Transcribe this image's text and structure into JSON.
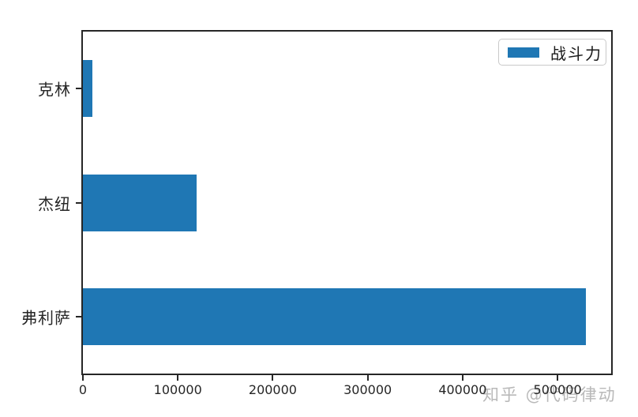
{
  "chart_data": {
    "type": "bar",
    "orientation": "horizontal",
    "title": "",
    "xlabel": "",
    "ylabel": "",
    "categories": [
      "克林",
      "杰纽",
      "弗利萨"
    ],
    "series": [
      {
        "name": "战斗力",
        "values": [
          10000,
          120000,
          530000
        ]
      }
    ],
    "xlim": [
      0,
      556500
    ],
    "xticks": [
      0,
      100000,
      200000,
      300000,
      400000,
      500000
    ],
    "xtick_labels": [
      "0",
      "100000",
      "200000",
      "300000",
      "400000",
      "500000"
    ],
    "grid": false,
    "legend_position": "upper-right",
    "bar_color": "#1f77b4",
    "axis_color": "#262626"
  },
  "legend": {
    "label": "战斗力",
    "swatch_color": "#1f77b4"
  },
  "watermark": {
    "text": "知乎 @代码律动",
    "color": "#b9b9b9"
  }
}
